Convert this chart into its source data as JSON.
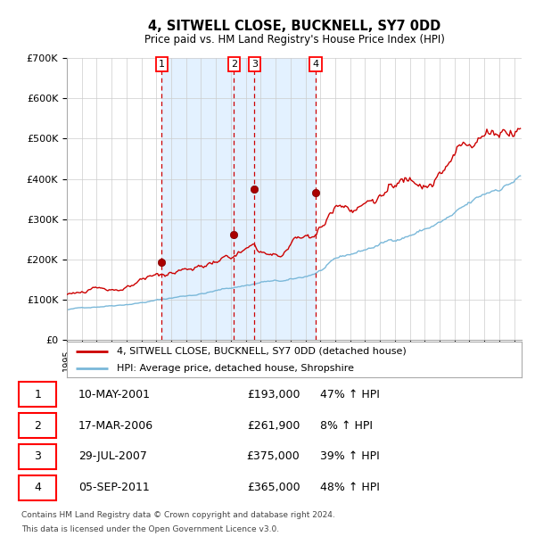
{
  "title": "4, SITWELL CLOSE, BUCKNELL, SY7 0DD",
  "subtitle": "Price paid vs. HM Land Registry's House Price Index (HPI)",
  "footer_line1": "Contains HM Land Registry data © Crown copyright and database right 2024.",
  "footer_line2": "This data is licensed under the Open Government Licence v3.0.",
  "legend_label_red": "4, SITWELL CLOSE, BUCKNELL, SY7 0DD (detached house)",
  "legend_label_blue": "HPI: Average price, detached house, Shropshire",
  "transactions": [
    {
      "num": 1,
      "date": "10-MAY-2001",
      "year": 2001.36,
      "price": 193000,
      "pct": "47% ↑ HPI"
    },
    {
      "num": 2,
      "date": "17-MAR-2006",
      "year": 2006.21,
      "price": 261900,
      "pct": "8% ↑ HPI"
    },
    {
      "num": 3,
      "date": "29-JUL-2007",
      "year": 2007.58,
      "price": 375000,
      "pct": "39% ↑ HPI"
    },
    {
      "num": 4,
      "date": "05-SEP-2011",
      "year": 2011.68,
      "price": 365000,
      "pct": "48% ↑ HPI"
    }
  ],
  "hpi_color": "#7ab8d9",
  "sale_color": "#cc0000",
  "shade_color": "#ddeeff",
  "grid_color": "#cccccc",
  "background_color": "#ffffff",
  "ylim": [
    0,
    700000
  ],
  "yticks": [
    0,
    100000,
    200000,
    300000,
    400000,
    500000,
    600000,
    700000
  ],
  "xlim_start": 1995.0,
  "xlim_end": 2025.5,
  "hpi_seed": 42,
  "prop_seed": 123
}
